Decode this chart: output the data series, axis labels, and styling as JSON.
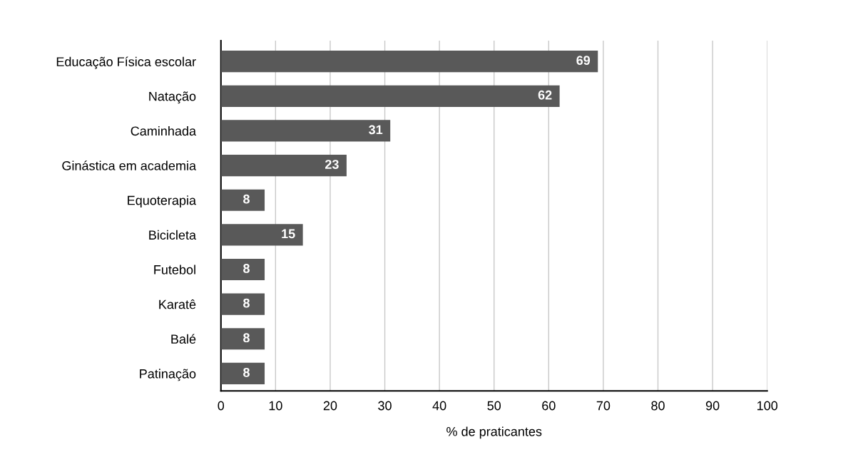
{
  "chart_data": {
    "type": "bar",
    "orientation": "horizontal",
    "xlabel": "% de praticantes",
    "categories": [
      "Educação Física escolar",
      "Natação",
      "Caminhada",
      "Ginástica em academia",
      "Equoterapia",
      "Bicicleta",
      "Futebol",
      "Karatê",
      "Balé",
      "Patinação"
    ],
    "values": [
      69,
      62,
      31,
      23,
      8,
      15,
      8,
      8,
      8,
      8
    ],
    "color": "#595959",
    "xlim": [
      0,
      100
    ],
    "xticks": [
      0,
      10,
      20,
      30,
      40,
      50,
      60,
      70,
      80,
      90,
      100
    ],
    "grid": "x",
    "data_labels": true
  }
}
